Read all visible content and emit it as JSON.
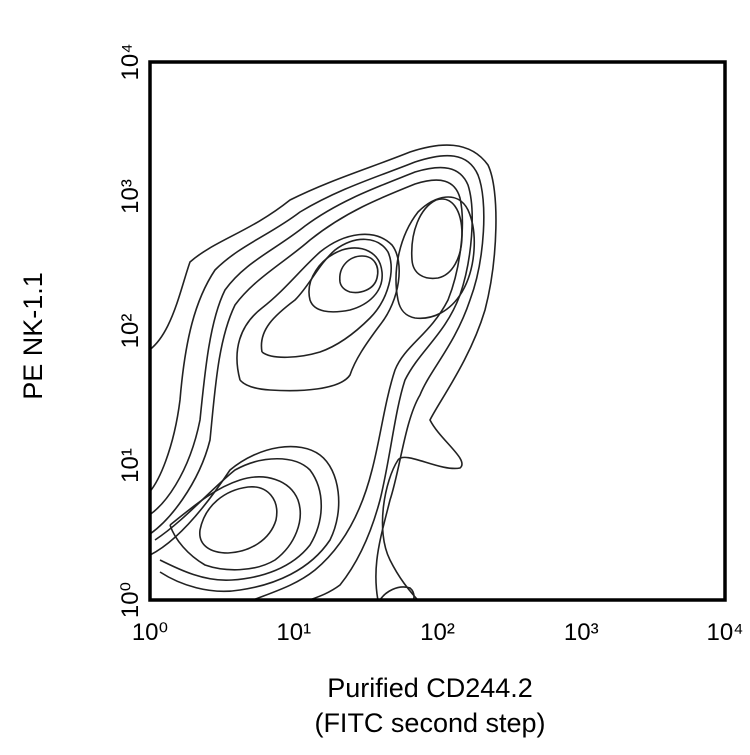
{
  "chart_data": {
    "type": "contour",
    "xlabel": [
      "Purified CD244.2",
      "(FITC second step)"
    ],
    "ylabel": "PE NK-1.1",
    "xscale": "log",
    "yscale": "log",
    "xlim": [
      1,
      10000
    ],
    "ylim": [
      1,
      10000
    ],
    "xticks": [
      {
        "value": 1,
        "label": "10⁰"
      },
      {
        "value": 10,
        "label": "10¹"
      },
      {
        "value": 100,
        "label": "10²"
      },
      {
        "value": 1000,
        "label": "10³"
      },
      {
        "value": 10000,
        "label": "10⁴"
      }
    ],
    "yticks": [
      {
        "value": 1,
        "label": "10⁰"
      },
      {
        "value": 10,
        "label": "10¹"
      },
      {
        "value": 100,
        "label": "10²"
      },
      {
        "value": 1000,
        "label": "10³"
      },
      {
        "value": 10000,
        "label": "10⁴"
      }
    ],
    "color": "#222222"
  }
}
